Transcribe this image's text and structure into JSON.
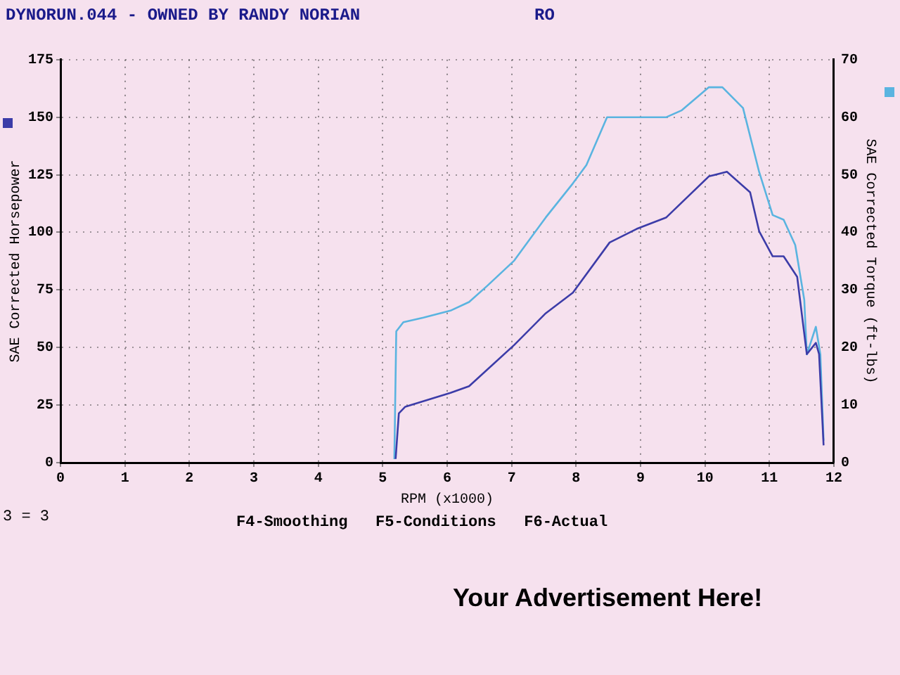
{
  "chart_data": {
    "type": "line",
    "title": "DYNORUN.044 - OWNED BY RANDY NORIAN",
    "xlabel": "RPM (x1000)",
    "ylabel": "SAE Corrected Horsepower",
    "y2label": "SAE Corrected Torque (ft-lbs)",
    "annotations": [
      "RO",
      "3 = 3",
      "F4-Smoothing   F5-Conditions   F6-Actual",
      "Your Advertisement Here!"
    ],
    "xlim": [
      0,
      12
    ],
    "xticks": [
      0,
      1,
      2,
      3,
      4,
      5,
      6,
      7,
      8,
      9,
      10,
      11,
      12
    ],
    "ylim": [
      0,
      175
    ],
    "yticks": [
      0,
      25,
      50,
      75,
      100,
      125,
      150,
      175
    ],
    "y2lim": [
      0,
      70
    ],
    "y2ticks": [
      0,
      10,
      20,
      30,
      40,
      50,
      60,
      70
    ],
    "grid": true,
    "legend": false,
    "marker": "none",
    "line_style": "solid",
    "series": [
      {
        "color": "#3c3ca8",
        "x": [
          5.2,
          5.25,
          5.35,
          6.05,
          6.34,
          7.04,
          7.53,
          7.95,
          8.52,
          8.94,
          9.4,
          10.06,
          10.34,
          10.7,
          10.84,
          11.05,
          11.22,
          11.43,
          11.58,
          11.72,
          11.77,
          11.84
        ],
        "values": [
          1.6,
          21.4,
          24.3,
          30.3,
          33.2,
          51.1,
          64.9,
          73.8,
          95.6,
          101.5,
          106.5,
          124.3,
          126.3,
          117.4,
          100.5,
          89.6,
          89.6,
          80.7,
          47.1,
          52.0,
          47.1,
          7.5
        ]
      },
      {
        "color": "#5ab4e0",
        "axis": "y2",
        "x": [
          5.18,
          5.21,
          5.32,
          5.63,
          6.05,
          6.34,
          6.62,
          7.04,
          7.53,
          7.95,
          8.16,
          8.48,
          8.94,
          9.4,
          9.64,
          10.06,
          10.27,
          10.59,
          10.84,
          11.05,
          11.22,
          11.4,
          11.54,
          11.58,
          11.72,
          11.79,
          11.84
        ],
        "values": [
          0.6,
          22.8,
          24.4,
          25.2,
          26.4,
          27.9,
          30.7,
          35.1,
          42.6,
          48.5,
          51.7,
          60.0,
          60.0,
          60.0,
          61.2,
          65.2,
          65.2,
          61.6,
          50.5,
          43.0,
          42.2,
          37.8,
          28.3,
          18.8,
          23.6,
          18.8,
          3.8
        ]
      }
    ]
  }
}
